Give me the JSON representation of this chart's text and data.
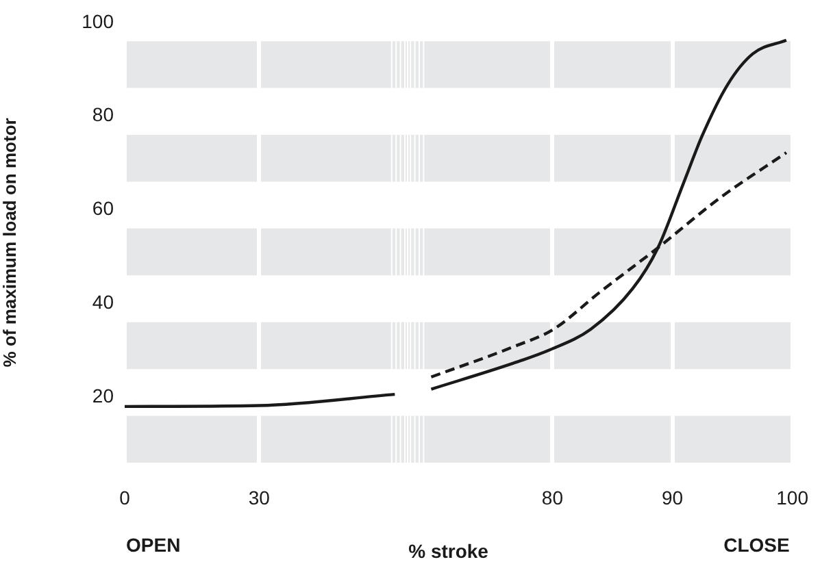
{
  "chart_data": [
    {
      "type": "line",
      "ylabel": "% of maximum load on motor",
      "annotations": [
        "OPEN"
      ],
      "xlim": [
        0,
        63
      ],
      "xticks": [
        0,
        30
      ],
      "ylim": [
        6,
        100
      ],
      "yticks": [
        20,
        40,
        60,
        80,
        100
      ],
      "grid": "x",
      "legend": false,
      "marker": "none",
      "bands": [
        {
          "axis": "y",
          "from": 6,
          "to": 16,
          "color": "#e6e7e8"
        },
        {
          "axis": "y",
          "from": 26,
          "to": 36,
          "color": "#e6e7e8"
        },
        {
          "axis": "y",
          "from": 46,
          "to": 56,
          "color": "#e6e7e8"
        },
        {
          "axis": "y",
          "from": 66,
          "to": 76,
          "color": "#e6e7e8"
        },
        {
          "axis": "y",
          "from": 86,
          "to": 96,
          "color": "#e6e7e8"
        }
      ],
      "series": [
        {
          "color": "#1a1a1a",
          "line_style": "solid",
          "x": [
            0,
            30,
            60.3
          ],
          "values": [
            18,
            18.2,
            20.6
          ]
        }
      ]
    },
    {
      "type": "line",
      "xlabel": "% stroke",
      "annotations": [
        "CLOSE"
      ],
      "xlim": [
        68,
        100
      ],
      "xticks": [
        80,
        90,
        100
      ],
      "ylim": [
        6,
        100
      ],
      "tick_labels": "x",
      "grid": "x",
      "legend": false,
      "marker": "none",
      "bands": [
        {
          "axis": "y",
          "from": 6,
          "to": 16,
          "color": "#e6e7e8"
        },
        {
          "axis": "y",
          "from": 26,
          "to": 36,
          "color": "#e6e7e8"
        },
        {
          "axis": "y",
          "from": 46,
          "to": 56,
          "color": "#e6e7e8"
        },
        {
          "axis": "y",
          "from": 66,
          "to": 76,
          "color": "#e6e7e8"
        },
        {
          "axis": "y",
          "from": 86,
          "to": 96,
          "color": "#e6e7e8"
        }
      ],
      "series": [
        {
          "color": "#1a1a1a",
          "line_style": "solid",
          "x": [
            69.9,
            76.7,
            79.8,
            83.2,
            86.7,
            88.8,
            90.9,
            92.5,
            94.6,
            96.7,
            99.5
          ],
          "values": [
            21.7,
            27.2,
            30.1,
            34.5,
            43.2,
            51.9,
            65.5,
            75.9,
            86.7,
            93.3,
            96.2
          ]
        },
        {
          "color": "#1a1a1a",
          "line_style": "dashed",
          "x": [
            69.9,
            76.7,
            80.1,
            83.9,
            88.8,
            94,
            99.5
          ],
          "values": [
            24.3,
            30.7,
            34.5,
            42.3,
            51.9,
            62.6,
            72.2
          ]
        }
      ]
    }
  ]
}
